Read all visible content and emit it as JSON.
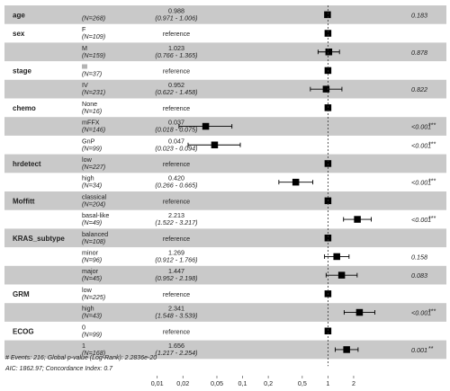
{
  "chart_data": {
    "type": "forest",
    "title": "",
    "x_scale": "log",
    "x_ticks": [
      "0.01",
      "0.02",
      "0.05",
      "0.1",
      "0.2",
      "0.5",
      "1",
      "2"
    ],
    "x_tick_values": [
      0.01,
      0.02,
      0.05,
      0.1,
      0.2,
      0.5,
      1,
      2
    ],
    "xlim": [
      0.0085,
      3.5
    ],
    "reference_line": 1,
    "colors": {
      "shaded_row": "#c9c9c9",
      "marker": "#000000",
      "reference_line": "#333333"
    },
    "rows": [
      {
        "variable": "age",
        "level": "",
        "n": "(N=268)",
        "estimate": "0.988",
        "ci": "(0.971 - 1.006)",
        "hr": 0.988,
        "lower": 0.971,
        "upper": 1.006,
        "p": "0.183",
        "stars": "",
        "shaded": true
      },
      {
        "variable": "sex",
        "level": "F",
        "n": "(N=109)",
        "estimate": "reference",
        "ci": "",
        "hr": 1,
        "lower": null,
        "upper": null,
        "p": "",
        "stars": "",
        "shaded": false
      },
      {
        "variable": "",
        "level": "M",
        "n": "(N=159)",
        "estimate": "1.023",
        "ci": "(0.766 - 1.365)",
        "hr": 1.023,
        "lower": 0.766,
        "upper": 1.365,
        "p": "0.878",
        "stars": "",
        "shaded": true
      },
      {
        "variable": "stage",
        "level": "III",
        "n": "(N=37)",
        "estimate": "reference",
        "ci": "",
        "hr": 1,
        "lower": null,
        "upper": null,
        "p": "",
        "stars": "",
        "shaded": false
      },
      {
        "variable": "",
        "level": "IV",
        "n": "(N=231)",
        "estimate": "0.952",
        "ci": "(0.622 - 1.458)",
        "hr": 0.952,
        "lower": 0.622,
        "upper": 1.458,
        "p": "0.822",
        "stars": "",
        "shaded": true
      },
      {
        "variable": "chemo",
        "level": "None",
        "n": "(N=16)",
        "estimate": "reference",
        "ci": "",
        "hr": 1,
        "lower": null,
        "upper": null,
        "p": "",
        "stars": "",
        "shaded": false
      },
      {
        "variable": "",
        "level": "mFFX",
        "n": "(N=146)",
        "estimate": "0.037",
        "ci": "(0.018 - 0.075)",
        "hr": 0.037,
        "lower": 0.018,
        "upper": 0.075,
        "p": "<0.001",
        "stars": "***",
        "shaded": true
      },
      {
        "variable": "",
        "level": "GnP",
        "n": "(N=99)",
        "estimate": "0.047",
        "ci": "(0.023 - 0.094)",
        "hr": 0.047,
        "lower": 0.023,
        "upper": 0.094,
        "p": "<0.001",
        "stars": "***",
        "shaded": false
      },
      {
        "variable": "hrdetect",
        "level": "low",
        "n": "(N=227)",
        "estimate": "reference",
        "ci": "",
        "hr": 1,
        "lower": null,
        "upper": null,
        "p": "",
        "stars": "",
        "shaded": true
      },
      {
        "variable": "",
        "level": "high",
        "n": "(N=34)",
        "estimate": "0.420",
        "ci": "(0.266 - 0.665)",
        "hr": 0.42,
        "lower": 0.266,
        "upper": 0.665,
        "p": "<0.001",
        "stars": "***",
        "shaded": false
      },
      {
        "variable": "Moffitt",
        "level": "classical",
        "n": "(N=204)",
        "estimate": "reference",
        "ci": "",
        "hr": 1,
        "lower": null,
        "upper": null,
        "p": "",
        "stars": "",
        "shaded": true
      },
      {
        "variable": "",
        "level": "basal-like",
        "n": "(N=49)",
        "estimate": "2.213",
        "ci": "(1.522 - 3.217)",
        "hr": 2.213,
        "lower": 1.522,
        "upper": 3.217,
        "p": "<0.001",
        "stars": "***",
        "shaded": false
      },
      {
        "variable": "KRAS_subtype",
        "level": "balanced",
        "n": "(N=108)",
        "estimate": "reference",
        "ci": "",
        "hr": 1,
        "lower": null,
        "upper": null,
        "p": "",
        "stars": "",
        "shaded": true
      },
      {
        "variable": "",
        "level": "minor",
        "n": "(N=96)",
        "estimate": "1.269",
        "ci": "(0.912 - 1.766)",
        "hr": 1.269,
        "lower": 0.912,
        "upper": 1.766,
        "p": "0.158",
        "stars": "",
        "shaded": false
      },
      {
        "variable": "",
        "level": "major",
        "n": "(N=45)",
        "estimate": "1.447",
        "ci": "(0.952 - 2.198)",
        "hr": 1.447,
        "lower": 0.952,
        "upper": 2.198,
        "p": "0.083",
        "stars": "",
        "shaded": true
      },
      {
        "variable": "GRM",
        "level": "low",
        "n": "(N=225)",
        "estimate": "reference",
        "ci": "",
        "hr": 1,
        "lower": null,
        "upper": null,
        "p": "",
        "stars": "",
        "shaded": false
      },
      {
        "variable": "",
        "level": "high",
        "n": "(N=43)",
        "estimate": "2.341",
        "ci": "(1.548 - 3.539)",
        "hr": 2.341,
        "lower": 1.548,
        "upper": 3.539,
        "p": "<0.001",
        "stars": "***",
        "shaded": true
      },
      {
        "variable": "ECOG",
        "level": "0",
        "n": "(N=99)",
        "estimate": "reference",
        "ci": "",
        "hr": 1,
        "lower": null,
        "upper": null,
        "p": "",
        "stars": "",
        "shaded": false
      },
      {
        "variable": "",
        "level": "1",
        "n": "(N=168)",
        "estimate": "1.656",
        "ci": "(1.217 - 2.254)",
        "hr": 1.656,
        "lower": 1.217,
        "upper": 2.254,
        "p": "0.001",
        "stars": "**",
        "shaded": true
      }
    ],
    "footnotes": [
      "# Events: 216; Global p-value (Log-Rank): 2.2836e-20",
      "AIC: 1862.97; Concordance Index: 0.7"
    ]
  }
}
